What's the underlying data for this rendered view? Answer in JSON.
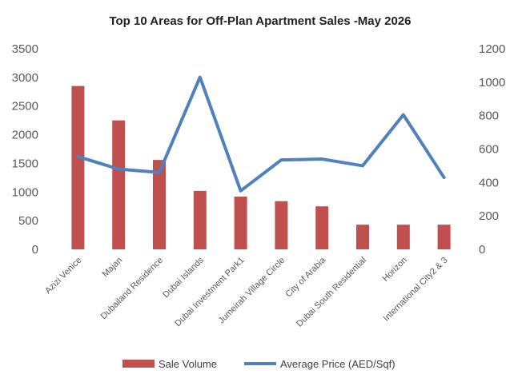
{
  "chart_data": {
    "type": "bar",
    "title": "Top 10 Areas for Off-Plan Apartment Sales -May 2026",
    "categories": [
      "Azizi Venice",
      "Majan",
      "Dubailand Residence",
      "Dubai Islands",
      "Dubai Investment Park1",
      "Jumeirah Village Circle",
      "City of Arabia",
      "Dubai South Residential",
      "Horizon",
      "International City2 & 3"
    ],
    "series": [
      {
        "name": "Sale Volume",
        "type": "bar",
        "axis": "left",
        "color": "#c0504d",
        "values": [
          2850,
          2250,
          1560,
          1020,
          920,
          840,
          750,
          430,
          430,
          430
        ]
      },
      {
        "name": "Average Price (AED/Sqf)",
        "type": "line",
        "axis": "right",
        "color": "#4f81bd",
        "values": [
          555,
          480,
          460,
          1030,
          350,
          535,
          540,
          500,
          805,
          430
        ]
      }
    ],
    "y_left": {
      "min": 0,
      "max": 3500,
      "ticks": [
        0,
        500,
        1000,
        1500,
        2000,
        2500,
        3000,
        3500
      ]
    },
    "y_right": {
      "min": 0,
      "max": 1200,
      "ticks": [
        0,
        200,
        400,
        600,
        800,
        1000,
        1200
      ]
    },
    "grid": false,
    "legend": "bottom"
  }
}
